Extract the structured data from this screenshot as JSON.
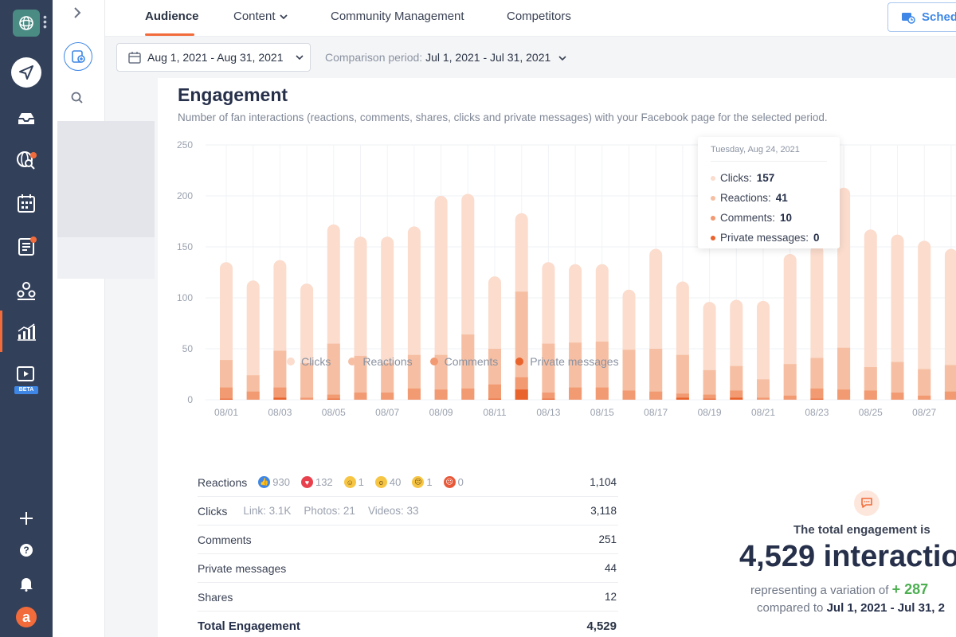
{
  "nav": {
    "tabs": [
      {
        "label": "Audience"
      },
      {
        "label": "Content"
      },
      {
        "label": "Community Management"
      },
      {
        "label": "Competitors"
      }
    ],
    "schedule_label": "Schedu"
  },
  "rail": {
    "beta_label": "BETA",
    "avatar_letter": "a"
  },
  "date": {
    "range": "Aug 1, 2021 - Aug 31, 2021",
    "comparison_label": "Comparison period:",
    "comparison_range": "Jul 1, 2021 - Jul 31, 2021"
  },
  "card": {
    "title": "Engagement",
    "subtitle": "Number of fan interactions (reactions, comments, shares, clicks and private messages) with your Facebook page for the selected period."
  },
  "colors": {
    "clicks": "#fbdccd",
    "reactions": "#f6bfa3",
    "comments": "#f29a72",
    "private": "#e9632c"
  },
  "chart_data": {
    "type": "bar",
    "stacked": true,
    "title": "Engagement",
    "ylim": [
      0,
      250
    ],
    "yticks": [
      0,
      50,
      100,
      150,
      200,
      250
    ],
    "categories": [
      "08/01",
      "08/02",
      "08/03",
      "08/04",
      "08/05",
      "08/06",
      "08/07",
      "08/08",
      "08/09",
      "08/10",
      "08/11",
      "08/12",
      "08/13",
      "08/14",
      "08/15",
      "08/16",
      "08/17",
      "08/18",
      "08/19",
      "08/20",
      "08/21",
      "08/22",
      "08/23",
      "08/24",
      "08/25",
      "08/26",
      "08/27",
      "08/28"
    ],
    "xtick_labels": [
      "08/01",
      "08/03",
      "08/05",
      "08/07",
      "08/09",
      "08/11",
      "08/13",
      "08/15",
      "08/17",
      "08/19",
      "08/21",
      "08/23",
      "08/25",
      "08/27"
    ],
    "series": [
      {
        "name": "Private messages",
        "values": [
          1,
          0,
          2,
          0,
          1,
          0,
          0,
          0,
          0,
          0,
          1,
          10,
          1,
          0,
          0,
          0,
          0,
          2,
          1,
          2,
          0,
          0,
          1,
          0,
          0,
          0,
          0,
          0
        ]
      },
      {
        "name": "Comments",
        "values": [
          11,
          8,
          10,
          2,
          4,
          7,
          7,
          11,
          10,
          11,
          14,
          12,
          6,
          12,
          12,
          9,
          8,
          4,
          4,
          7,
          2,
          4,
          10,
          10,
          9,
          7,
          4,
          8
        ]
      },
      {
        "name": "Reactions",
        "values": [
          27,
          16,
          36,
          34,
          50,
          36,
          29,
          33,
          34,
          53,
          35,
          84,
          48,
          44,
          45,
          40,
          42,
          38,
          24,
          24,
          18,
          31,
          30,
          41,
          23,
          30,
          26,
          26
        ]
      },
      {
        "name": "Clicks",
        "values": [
          96,
          93,
          89,
          78,
          117,
          117,
          124,
          126,
          156,
          138,
          71,
          77,
          80,
          77,
          76,
          59,
          98,
          72,
          67,
          65,
          77,
          108,
          111,
          157,
          135,
          125,
          126,
          114
        ]
      }
    ],
    "legend": [
      "Clicks",
      "Reactions",
      "Comments",
      "Private messages"
    ],
    "legend_position": "bottom"
  },
  "tooltip": {
    "date": "Tuesday, Aug 24, 2021",
    "rows": [
      {
        "label": "Clicks:",
        "value": "157"
      },
      {
        "label": "Reactions:",
        "value": "41"
      },
      {
        "label": "Comments:",
        "value": "10"
      },
      {
        "label": "Private messages:",
        "value": "0"
      }
    ]
  },
  "table": {
    "reactions_label": "Reactions",
    "reactions": [
      {
        "icon": "like-icon",
        "count": "930"
      },
      {
        "icon": "love-icon",
        "count": "132"
      },
      {
        "icon": "haha-icon",
        "count": "1"
      },
      {
        "icon": "wow-icon",
        "count": "40"
      },
      {
        "icon": "sad-icon",
        "count": "1"
      },
      {
        "icon": "angry-icon",
        "count": "0"
      }
    ],
    "reactions_total": "1,104",
    "clicks_label": "Clicks",
    "clicks_link": "Link: 3.1K",
    "clicks_photos": "Photos: 21",
    "clicks_videos": "Videos: 33",
    "clicks_total": "3,118",
    "comments_label": "Comments",
    "comments_total": "251",
    "private_label": "Private messages",
    "private_total": "44",
    "shares_label": "Shares",
    "shares_total": "12",
    "total_label": "Total Engagement",
    "total_value": "4,529"
  },
  "summary": {
    "label": "The total engagement is",
    "big": "4,529 interactio",
    "line1_prefix": "representing a variation of",
    "variation": "+ 287",
    "line2_prefix": "compared to",
    "line2_range": "Jul 1, 2021 - Jul 31, 2"
  }
}
